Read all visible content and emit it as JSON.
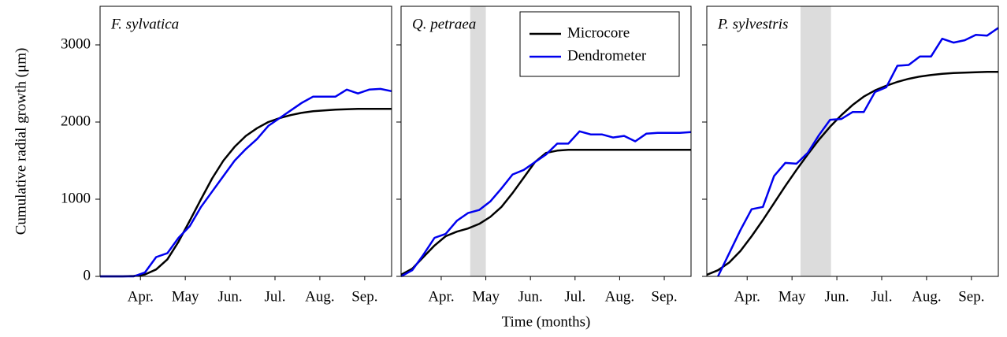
{
  "chart_data": [
    {
      "type": "line",
      "title": "F. sylvatica",
      "ylabel": "Cumulative radial growth (μm)",
      "x": [
        3.6,
        3.85,
        4.1,
        4.35,
        4.6,
        4.85,
        5.1,
        5.35,
        5.6,
        5.85,
        6.1,
        6.35,
        6.6,
        6.85,
        7.1,
        7.35,
        7.6,
        7.85,
        8.1,
        8.35,
        8.6,
        8.85,
        9.1,
        9.35,
        9.6,
        9.85,
        10.1
      ],
      "series": [
        {
          "color": "#000000",
          "values": [
            0,
            0,
            0,
            5,
            25,
            90,
            220,
            450,
            720,
            1000,
            1270,
            1500,
            1680,
            1820,
            1920,
            2000,
            2050,
            2090,
            2120,
            2140,
            2150,
            2160,
            2165,
            2170,
            2170,
            2170,
            2170
          ]
        },
        {
          "color": "#0000ee",
          "values": [
            0,
            0,
            0,
            0,
            50,
            250,
            300,
            500,
            650,
            900,
            1100,
            1300,
            1500,
            1650,
            1780,
            1950,
            2050,
            2150,
            2250,
            2330,
            2330,
            2330,
            2420,
            2370,
            2420,
            2430,
            2400
          ]
        }
      ],
      "xlim": [
        3.6,
        10.1
      ],
      "xticks": [
        {
          "value": 4.5,
          "label": "Apr."
        },
        {
          "value": 5.5,
          "label": "May"
        },
        {
          "value": 6.5,
          "label": "Jun."
        },
        {
          "value": 7.5,
          "label": "Jul."
        },
        {
          "value": 8.5,
          "label": "Aug."
        },
        {
          "value": 9.5,
          "label": "Sep."
        }
      ],
      "ylim": [
        0,
        3500
      ],
      "yticks": [
        0,
        1000,
        2000,
        3000
      ]
    },
    {
      "type": "line",
      "title": "Q. petraea",
      "xlabel": "Time (months)",
      "legend": "upper right",
      "shade": [
        5.15,
        5.5
      ],
      "x": [
        3.6,
        3.85,
        4.1,
        4.35,
        4.6,
        4.85,
        5.1,
        5.35,
        5.6,
        5.85,
        6.1,
        6.35,
        6.6,
        6.85,
        7.1,
        7.35,
        7.6,
        7.85,
        8.1,
        8.35,
        8.6,
        8.85,
        9.1,
        9.35,
        9.6,
        9.85,
        10.1
      ],
      "series": [
        {
          "name": "Microcore",
          "color": "#000000",
          "values": [
            20,
            100,
            250,
            400,
            520,
            580,
            620,
            680,
            770,
            900,
            1080,
            1280,
            1480,
            1600,
            1630,
            1640,
            1640,
            1640,
            1640,
            1640,
            1640,
            1640,
            1640,
            1640,
            1640,
            1640,
            1640
          ]
        },
        {
          "name": "Dendrometer",
          "color": "#0000ee",
          "values": [
            0,
            80,
            280,
            500,
            550,
            720,
            820,
            860,
            970,
            1140,
            1320,
            1380,
            1480,
            1580,
            1720,
            1720,
            1880,
            1840,
            1840,
            1800,
            1820,
            1750,
            1850,
            1860,
            1860,
            1860,
            1870
          ]
        }
      ],
      "xlim": [
        3.6,
        10.1
      ],
      "xticks": [
        {
          "value": 4.5,
          "label": "Apr."
        },
        {
          "value": 5.5,
          "label": "May"
        },
        {
          "value": 6.5,
          "label": "Jun."
        },
        {
          "value": 7.5,
          "label": "Jul."
        },
        {
          "value": 8.5,
          "label": "Aug."
        },
        {
          "value": 9.5,
          "label": "Sep."
        }
      ],
      "ylim": [
        0,
        3500
      ],
      "yticks": [
        0,
        1000,
        2000,
        3000
      ]
    },
    {
      "type": "line",
      "title": "P. sylvestris",
      "shade": [
        5.69,
        6.37
      ],
      "x": [
        3.6,
        3.85,
        4.1,
        4.35,
        4.6,
        4.85,
        5.1,
        5.35,
        5.6,
        5.85,
        6.1,
        6.35,
        6.6,
        6.85,
        7.1,
        7.35,
        7.6,
        7.85,
        8.1,
        8.35,
        8.6,
        8.85,
        9.1,
        9.35,
        9.6,
        9.85,
        10.1
      ],
      "series": [
        {
          "color": "#000000",
          "values": [
            20,
            80,
            180,
            330,
            520,
            730,
            950,
            1170,
            1380,
            1580,
            1770,
            1940,
            2090,
            2220,
            2330,
            2410,
            2470,
            2520,
            2560,
            2590,
            2610,
            2625,
            2635,
            2640,
            2645,
            2650,
            2650
          ]
        },
        {
          "color": "#0000ee",
          "values": [
            null,
            0,
            300,
            600,
            870,
            900,
            1300,
            1470,
            1460,
            1600,
            1830,
            2030,
            2040,
            2130,
            2130,
            2390,
            2450,
            2730,
            2740,
            2850,
            2850,
            3080,
            3030,
            3060,
            3130,
            3120,
            3220
          ]
        }
      ],
      "xlim": [
        3.6,
        10.1
      ],
      "xticks": [
        {
          "value": 4.5,
          "label": "Apr."
        },
        {
          "value": 5.5,
          "label": "May"
        },
        {
          "value": 6.5,
          "label": "Jun."
        },
        {
          "value": 7.5,
          "label": "Jul."
        },
        {
          "value": 8.5,
          "label": "Aug."
        },
        {
          "value": 9.5,
          "label": "Sep."
        }
      ],
      "ylim": [
        0,
        3500
      ],
      "yticks": [
        0,
        1000,
        2000,
        3000
      ]
    }
  ]
}
